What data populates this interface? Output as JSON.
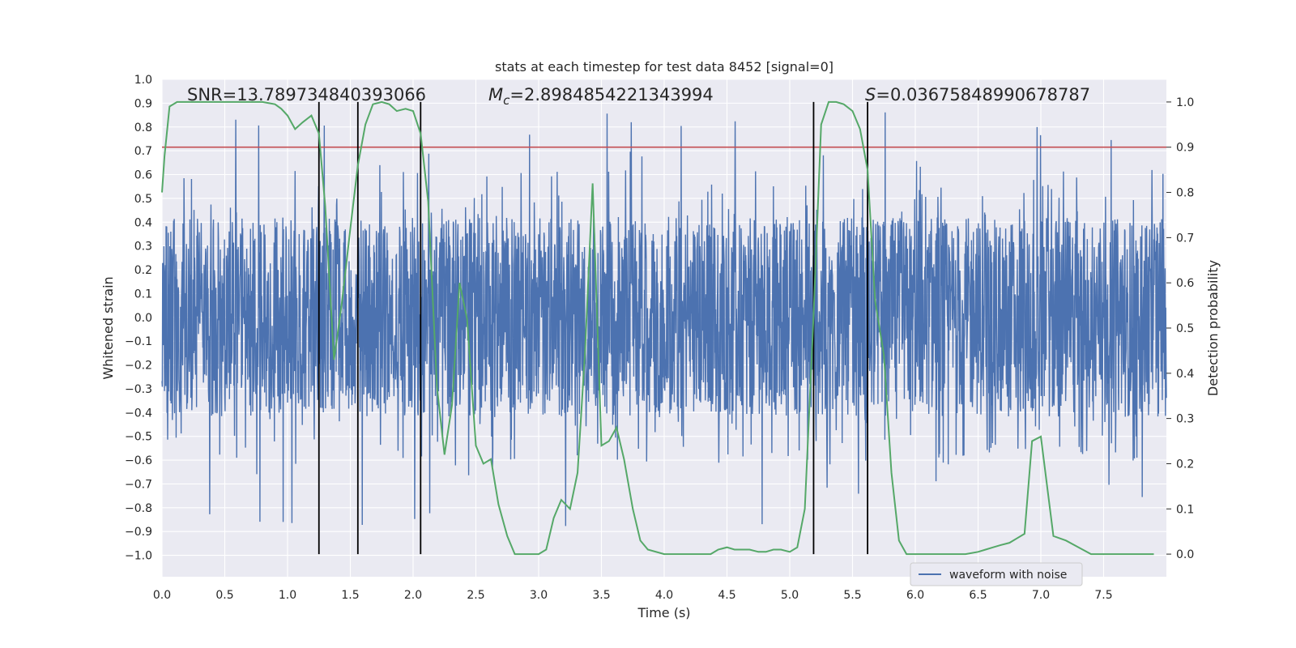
{
  "chart_data": {
    "type": "line",
    "title": "stats at each timestep for test data 8452 [signal=0]",
    "xlabel": "Time (s)",
    "ylabel_left": "Whitened strain",
    "ylabel_right": "Detection probability",
    "xlim": [
      0.0,
      8.0
    ],
    "ylim_left": [
      -1.09,
      1.0
    ],
    "ylim_right": [
      -0.05,
      1.05
    ],
    "x_ticks": [
      0.0,
      0.5,
      1.0,
      1.5,
      2.0,
      2.5,
      3.0,
      3.5,
      4.0,
      4.5,
      5.0,
      5.5,
      6.0,
      6.5,
      7.0,
      7.5
    ],
    "x_tick_labels": [
      "0.0",
      "0.5",
      "1.0",
      "1.5",
      "2.0",
      "2.5",
      "3.0",
      "3.5",
      "4.0",
      "4.5",
      "5.0",
      "5.5",
      "6.0",
      "6.5",
      "7.0",
      "7.5"
    ],
    "y_left_ticks": [
      1.0,
      0.9,
      0.8,
      0.7,
      0.6,
      0.5,
      0.4,
      0.3,
      0.2,
      0.1,
      0.0,
      -0.1,
      -0.2,
      -0.3,
      -0.4,
      -0.5,
      -0.6,
      -0.7,
      -0.8,
      -0.9,
      -1.0
    ],
    "y_left_tick_labels": [
      "1.0",
      "0.9",
      "0.8",
      "0.7",
      "0.6",
      "0.5",
      "0.4",
      "0.3",
      "0.2",
      "0.1",
      "0.0",
      "−0.1",
      "−0.2",
      "−0.3",
      "−0.4",
      "−0.5",
      "−0.6",
      "−0.7",
      "−0.8",
      "−0.9",
      "−1.0"
    ],
    "y_right_ticks": [
      1.0,
      0.9,
      0.8,
      0.7,
      0.6,
      0.5,
      0.4,
      0.3,
      0.2,
      0.1,
      0.0
    ],
    "y_right_tick_labels": [
      "1.0",
      "0.9",
      "0.8",
      "0.7",
      "0.6",
      "0.5",
      "0.4",
      "0.3",
      "0.2",
      "0.1",
      "0.0"
    ],
    "annotations": [
      {
        "label": "SNR=13.789734840393066",
        "x": 0.2
      },
      {
        "label": "=2.8984854221343994",
        "math_prefix": "M",
        "math_sub": "c",
        "x": 2.6
      },
      {
        "label": "=0.03675848990678787",
        "math_prefix": "S",
        "x": 5.6
      }
    ],
    "threshold": {
      "value": 0.9,
      "axis": "right",
      "color": "#c44e52"
    },
    "vlines": [
      1.25,
      1.56,
      2.06,
      5.19,
      5.62
    ],
    "vline_color": "#000000",
    "series": [
      {
        "name": "waveform with noise",
        "axis": "left",
        "color": "#4c72b0",
        "description": "whitened strain noise, core band approx ±0.4 with spikes up to ±0.9"
      },
      {
        "name": "detection probability",
        "axis": "right",
        "color": "#55a868",
        "x": [
          0.0,
          0.02,
          0.06,
          0.12,
          0.2,
          0.3,
          0.4,
          0.5,
          0.6,
          0.7,
          0.8,
          0.9,
          0.95,
          1.0,
          1.06,
          1.12,
          1.19,
          1.25,
          1.3,
          1.37,
          1.43,
          1.5,
          1.56,
          1.62,
          1.68,
          1.75,
          1.81,
          1.87,
          1.94,
          2.0,
          2.06,
          2.12,
          2.19,
          2.25,
          2.31,
          2.37,
          2.43,
          2.5,
          2.56,
          2.62,
          2.68,
          2.75,
          2.81,
          2.87,
          2.93,
          3.0,
          3.06,
          3.12,
          3.18,
          3.25,
          3.31,
          3.37,
          3.43,
          3.5,
          3.56,
          3.62,
          3.68,
          3.75,
          3.81,
          3.87,
          4.0,
          4.1,
          4.2,
          4.3,
          4.37,
          4.43,
          4.5,
          4.56,
          4.62,
          4.68,
          4.75,
          4.81,
          4.87,
          4.93,
          5.0,
          5.06,
          5.12,
          5.19,
          5.25,
          5.31,
          5.37,
          5.43,
          5.5,
          5.56,
          5.62,
          5.68,
          5.75,
          5.81,
          5.87,
          5.93,
          6.0,
          6.1,
          6.2,
          6.3,
          6.4,
          6.5,
          6.56,
          6.62,
          6.68,
          6.75,
          6.81,
          6.87,
          6.93,
          7.0,
          7.1,
          7.2,
          7.3,
          7.4,
          7.5,
          7.6,
          7.7,
          7.8,
          7.9
        ],
        "y": [
          0.8,
          0.88,
          0.99,
          1.0,
          1.0,
          1.0,
          1.0,
          1.0,
          1.0,
          1.0,
          1.0,
          0.995,
          0.985,
          0.97,
          0.94,
          0.955,
          0.97,
          0.93,
          0.77,
          0.43,
          0.55,
          0.72,
          0.86,
          0.95,
          0.995,
          1.0,
          0.995,
          0.98,
          0.985,
          0.98,
          0.93,
          0.78,
          0.37,
          0.22,
          0.33,
          0.6,
          0.52,
          0.24,
          0.2,
          0.21,
          0.11,
          0.04,
          0.0,
          0.0,
          0.0,
          0.0,
          0.01,
          0.08,
          0.12,
          0.1,
          0.18,
          0.45,
          0.82,
          0.24,
          0.25,
          0.28,
          0.21,
          0.1,
          0.03,
          0.01,
          0.0,
          0.0,
          0.0,
          0.0,
          0.0,
          0.01,
          0.015,
          0.01,
          0.01,
          0.01,
          0.005,
          0.005,
          0.01,
          0.01,
          0.005,
          0.015,
          0.1,
          0.53,
          0.95,
          1.0,
          1.0,
          0.995,
          0.98,
          0.94,
          0.85,
          0.56,
          0.44,
          0.18,
          0.03,
          0.0,
          0.0,
          0.0,
          0.0,
          0.0,
          0.0,
          0.005,
          0.01,
          0.015,
          0.02,
          0.025,
          0.035,
          0.045,
          0.25,
          0.26,
          0.04,
          0.03,
          0.015,
          0.0,
          0.0,
          0.0,
          0.0,
          0.0,
          0.0
        ]
      }
    ],
    "legend": {
      "entries": [
        "waveform with noise"
      ],
      "location": "lower-right"
    }
  }
}
